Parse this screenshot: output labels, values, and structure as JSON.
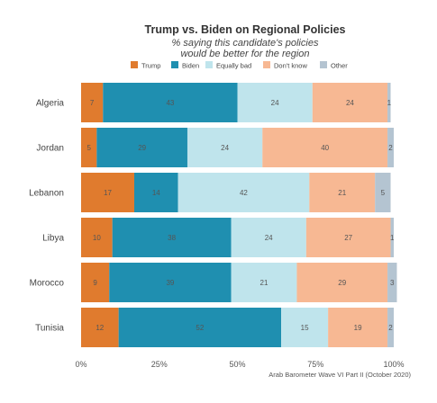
{
  "chart_data": {
    "type": "bar",
    "orientation": "horizontal",
    "stacked": true,
    "title": "Trump vs. Biden on Regional Policies",
    "subtitle_lines": [
      "% saying this candidate's policies",
      "would be better for the region"
    ],
    "categories": [
      "Algeria",
      "Jordan",
      "Lebanon",
      "Libya",
      "Morocco",
      "Tunisia"
    ],
    "series": [
      {
        "name": "Trump",
        "color": "#e07b2e",
        "values": [
          7,
          5,
          17,
          10,
          9,
          12
        ]
      },
      {
        "name": "Biden",
        "color": "#1f8fb0",
        "values": [
          43,
          29,
          14,
          38,
          39,
          52
        ]
      },
      {
        "name": "Equally bad",
        "color": "#bfe4ec",
        "values": [
          24,
          24,
          42,
          24,
          21,
          15
        ]
      },
      {
        "name": "Don't know",
        "color": "#f7b893",
        "values": [
          24,
          40,
          21,
          27,
          29,
          19
        ]
      },
      {
        "name": "Other",
        "color": "#b4c4d1",
        "values": [
          1,
          2,
          5,
          1,
          3,
          2
        ]
      }
    ],
    "xlim": [
      0,
      100
    ],
    "xticks": [
      "0%",
      "25%",
      "50%",
      "75%",
      "100%"
    ],
    "legend_position": "top",
    "grid": false,
    "source": "Arab Barometer Wave VI Part II (October 2020)"
  }
}
